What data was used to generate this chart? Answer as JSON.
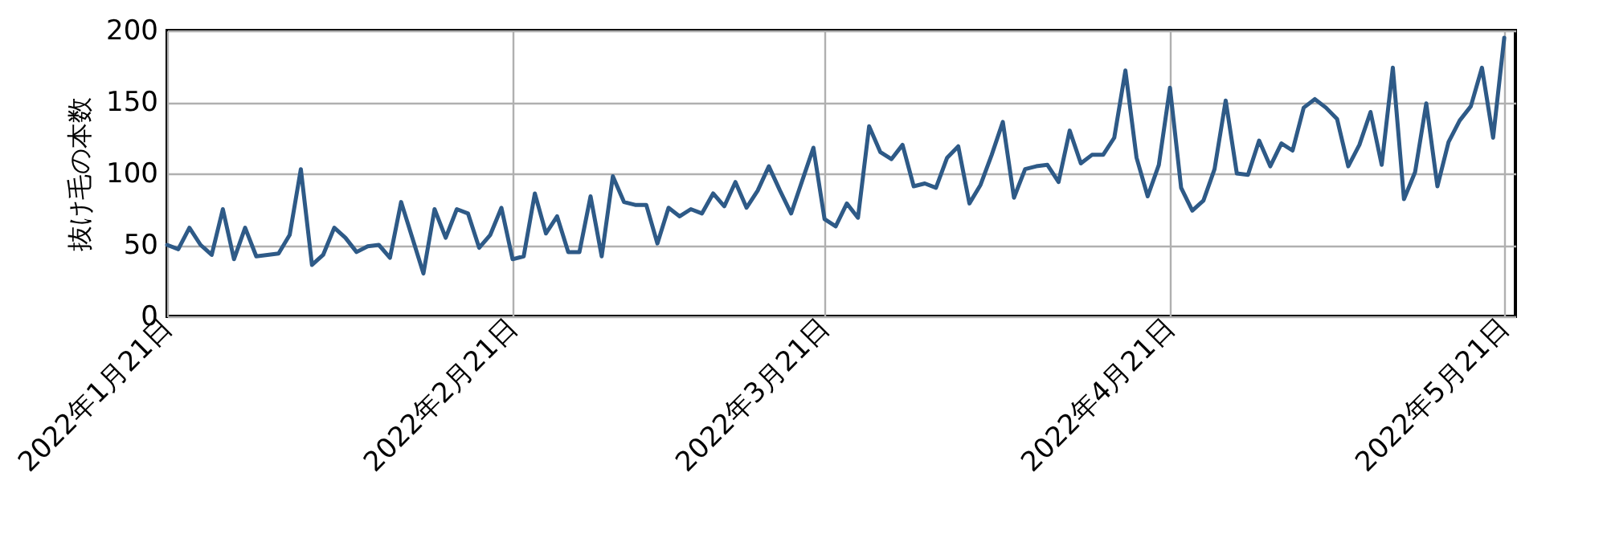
{
  "chart_data": {
    "type": "line",
    "ylabel": "抜け毛の本数",
    "x": [
      "2022-01-21",
      "2022-01-22",
      "2022-01-23",
      "2022-01-24",
      "2022-01-25",
      "2022-01-26",
      "2022-01-27",
      "2022-01-28",
      "2022-01-29",
      "2022-01-30",
      "2022-01-31",
      "2022-02-01",
      "2022-02-02",
      "2022-02-03",
      "2022-02-04",
      "2022-02-05",
      "2022-02-06",
      "2022-02-07",
      "2022-02-08",
      "2022-02-09",
      "2022-02-10",
      "2022-02-11",
      "2022-02-12",
      "2022-02-13",
      "2022-02-14",
      "2022-02-15",
      "2022-02-16",
      "2022-02-17",
      "2022-02-18",
      "2022-02-19",
      "2022-02-20",
      "2022-02-21",
      "2022-02-22",
      "2022-02-23",
      "2022-02-24",
      "2022-02-25",
      "2022-02-26",
      "2022-02-27",
      "2022-02-28",
      "2022-03-01",
      "2022-03-02",
      "2022-03-03",
      "2022-03-04",
      "2022-03-05",
      "2022-03-06",
      "2022-03-07",
      "2022-03-08",
      "2022-03-09",
      "2022-03-10",
      "2022-03-11",
      "2022-03-12",
      "2022-03-13",
      "2022-03-14",
      "2022-03-15",
      "2022-03-16",
      "2022-03-17",
      "2022-03-18",
      "2022-03-19",
      "2022-03-20",
      "2022-03-21",
      "2022-03-22",
      "2022-03-23",
      "2022-03-24",
      "2022-03-25",
      "2022-03-26",
      "2022-03-27",
      "2022-03-28",
      "2022-03-29",
      "2022-03-30",
      "2022-03-31",
      "2022-04-01",
      "2022-04-02",
      "2022-04-03",
      "2022-04-04",
      "2022-04-05",
      "2022-04-06",
      "2022-04-07",
      "2022-04-08",
      "2022-04-09",
      "2022-04-10",
      "2022-04-11",
      "2022-04-12",
      "2022-04-13",
      "2022-04-14",
      "2022-04-15",
      "2022-04-16",
      "2022-04-17",
      "2022-04-18",
      "2022-04-19",
      "2022-04-20",
      "2022-04-21",
      "2022-04-22",
      "2022-04-23",
      "2022-04-24",
      "2022-04-25",
      "2022-04-26",
      "2022-04-27",
      "2022-04-28",
      "2022-04-29",
      "2022-04-30",
      "2022-05-01",
      "2022-05-02",
      "2022-05-03",
      "2022-05-04",
      "2022-05-05",
      "2022-05-06",
      "2022-05-07",
      "2022-05-08",
      "2022-05-09",
      "2022-05-10",
      "2022-05-11",
      "2022-05-12",
      "2022-05-13",
      "2022-05-14",
      "2022-05-15",
      "2022-05-16",
      "2022-05-17",
      "2022-05-18",
      "2022-05-19",
      "2022-05-20",
      "2022-05-21"
    ],
    "series": [
      {
        "color": "#2e5a87",
        "values": [
          50,
          47,
          62,
          50,
          43,
          75,
          40,
          62,
          42,
          43,
          44,
          57,
          103,
          36,
          43,
          62,
          55,
          45,
          49,
          50,
          41,
          80,
          55,
          30,
          75,
          55,
          75,
          72,
          48,
          57,
          76,
          40,
          42,
          86,
          58,
          70,
          45,
          45,
          84,
          42,
          98,
          80,
          78,
          78,
          51,
          76,
          70,
          75,
          72,
          86,
          77,
          94,
          76,
          88,
          105,
          88,
          72,
          95,
          118,
          68,
          63,
          79,
          69,
          133,
          115,
          110,
          120,
          91,
          93,
          90,
          111,
          119,
          79,
          92,
          113,
          136,
          83,
          103,
          105,
          106,
          94,
          130,
          107,
          113,
          113,
          125,
          172,
          111,
          84,
          106,
          160,
          90,
          74,
          81,
          103,
          151,
          100,
          99,
          123,
          105,
          121,
          116,
          146,
          152,
          146,
          138,
          105,
          120,
          143,
          106,
          174,
          82,
          101,
          149,
          91,
          122,
          137,
          147,
          174,
          125,
          195
        ]
      }
    ],
    "xlim": [
      "2022-01-21",
      "2022-05-22"
    ],
    "xticks": [
      {
        "value": "2022-01-21",
        "label": "2022年1月21日"
      },
      {
        "value": "2022-02-21",
        "label": "2022年2月21日"
      },
      {
        "value": "2022-03-21",
        "label": "2022年3月21日"
      },
      {
        "value": "2022-04-21",
        "label": "2022年4月21日"
      },
      {
        "value": "2022-05-21",
        "label": "2022年5月21日"
      }
    ],
    "ylim": [
      0,
      200
    ],
    "yticks": [
      0,
      50,
      100,
      150,
      200
    ],
    "grid": true,
    "line_style": "solid",
    "marker": "none"
  }
}
